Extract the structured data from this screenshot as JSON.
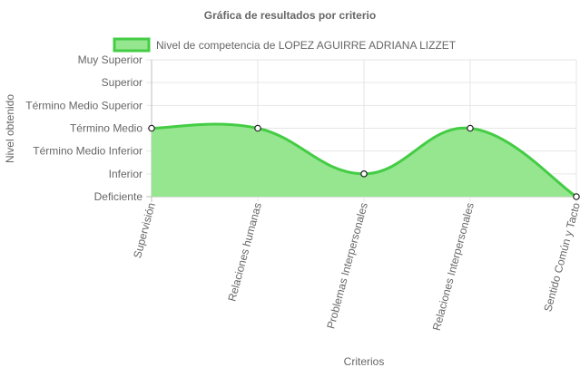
{
  "chart_data": {
    "type": "area",
    "title": "Gráfica de resultados por criterio",
    "xlabel": "Criterios",
    "ylabel": "Nivel obtenido",
    "categories": [
      "Supervisión",
      "Relaciones humanas",
      "Problemas Interpersonales",
      "Relaciones Interpersonales",
      "Sentido Común y Tacto"
    ],
    "y_levels": [
      "Deficiente",
      "Inferior",
      "Término Medio Inferior",
      "Término Medio",
      "Término Medio Superior",
      "Superior",
      "Muy Superior"
    ],
    "ylim": [
      0,
      6
    ],
    "grid": true,
    "legend_position": "top",
    "series": [
      {
        "name": "Nivel de competencia de LOPEZ AGUIRRE ADRIANA LIZZET",
        "values": [
          3,
          3,
          1,
          3,
          0
        ],
        "line_color": "#44cc44",
        "fill_color": "#95e68f"
      }
    ]
  }
}
